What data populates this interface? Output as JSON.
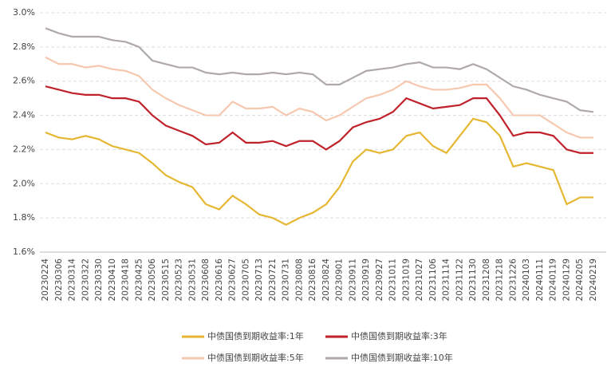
{
  "chart_data": {
    "type": "line",
    "categories": [
      "20230224",
      "20230306",
      "20230314",
      "20230322",
      "20230330",
      "20230410",
      "20230418",
      "20230425",
      "20230506",
      "20230515",
      "20230523",
      "20230531",
      "20230608",
      "20230616",
      "20230627",
      "20230705",
      "20230713",
      "20230721",
      "20230731",
      "20230808",
      "20230816",
      "20230824",
      "20230901",
      "20230911",
      "20230919",
      "20230927",
      "20231011",
      "20231019",
      "20231027",
      "20231106",
      "20231114",
      "20231122",
      "20231130",
      "20231208",
      "20231218",
      "20231226",
      "20240103",
      "20240111",
      "20240119",
      "20240129",
      "20240205",
      "20240219"
    ],
    "series": [
      {
        "name": "中债国债到期收益率:1年",
        "color": "#e6b732",
        "values": [
          2.3,
          2.27,
          2.26,
          2.28,
          2.26,
          2.22,
          2.2,
          2.18,
          2.12,
          2.05,
          2.01,
          1.98,
          1.88,
          1.85,
          1.93,
          1.88,
          1.82,
          1.8,
          1.76,
          1.8,
          1.83,
          1.88,
          1.98,
          2.13,
          2.2,
          2.18,
          2.2,
          2.28,
          2.3,
          2.22,
          2.18,
          2.28,
          2.38,
          2.36,
          2.28,
          2.1,
          2.12,
          2.1,
          2.08,
          1.88,
          1.92,
          1.92
        ]
      },
      {
        "name": "中债国债到期收益率:3年",
        "color": "#c0222b",
        "values": [
          2.57,
          2.55,
          2.53,
          2.52,
          2.52,
          2.5,
          2.5,
          2.48,
          2.4,
          2.34,
          2.31,
          2.28,
          2.23,
          2.24,
          2.3,
          2.24,
          2.24,
          2.25,
          2.22,
          2.25,
          2.25,
          2.2,
          2.25,
          2.33,
          2.36,
          2.38,
          2.42,
          2.5,
          2.47,
          2.44,
          2.45,
          2.46,
          2.5,
          2.5,
          2.4,
          2.28,
          2.3,
          2.3,
          2.28,
          2.2,
          2.18,
          2.18
        ]
      },
      {
        "name": "中债国债到期收益率:5年",
        "color": "#f7c8b0",
        "values": [
          2.74,
          2.7,
          2.7,
          2.68,
          2.69,
          2.67,
          2.66,
          2.63,
          2.55,
          2.5,
          2.46,
          2.43,
          2.4,
          2.4,
          2.48,
          2.44,
          2.44,
          2.45,
          2.4,
          2.44,
          2.42,
          2.37,
          2.4,
          2.45,
          2.5,
          2.52,
          2.55,
          2.6,
          2.57,
          2.55,
          2.55,
          2.56,
          2.58,
          2.58,
          2.5,
          2.4,
          2.4,
          2.4,
          2.35,
          2.3,
          2.27,
          2.27
        ]
      },
      {
        "name": "中债国债到期收益率:10年",
        "color": "#b0a9aa",
        "values": [
          2.91,
          2.88,
          2.86,
          2.86,
          2.86,
          2.84,
          2.83,
          2.8,
          2.72,
          2.7,
          2.68,
          2.68,
          2.65,
          2.64,
          2.65,
          2.64,
          2.64,
          2.65,
          2.64,
          2.65,
          2.64,
          2.58,
          2.58,
          2.62,
          2.66,
          2.67,
          2.68,
          2.7,
          2.71,
          2.68,
          2.68,
          2.67,
          2.7,
          2.67,
          2.62,
          2.57,
          2.55,
          2.52,
          2.5,
          2.48,
          2.43,
          2.42
        ]
      }
    ],
    "ylim": [
      1.6,
      3.0
    ],
    "yticks": [
      {
        "value": 1.6,
        "label": "1.6%"
      },
      {
        "value": 1.8,
        "label": "1.8%"
      },
      {
        "value": 2.0,
        "label": "2.0%"
      },
      {
        "value": 2.2,
        "label": "2.2%"
      },
      {
        "value": 2.4,
        "label": "2.4%"
      },
      {
        "value": 2.6,
        "label": "2.6%"
      },
      {
        "value": 2.8,
        "label": "2.8%"
      },
      {
        "value": 3.0,
        "label": "3.0%"
      }
    ],
    "grid": true
  }
}
